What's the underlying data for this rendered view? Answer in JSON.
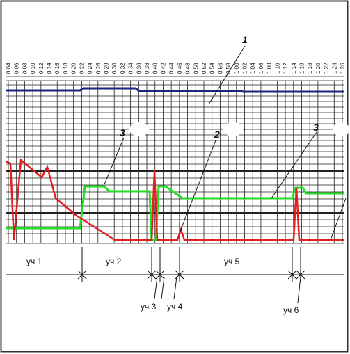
{
  "time_labels": [
    "0:04",
    "0:06",
    "0:08",
    "0:10",
    "0:12",
    "0:14",
    "0:16",
    "0:18",
    "0:20",
    "0:22",
    "0:24",
    "0:26",
    "0:28",
    "0:30",
    "0:32",
    "0:34",
    "0:36",
    "0:38",
    "0:40",
    "0:42",
    "0:44",
    "0:46",
    "0:48",
    "0:50",
    "0:52",
    "0:54",
    "0:56",
    "0:58",
    "1:00",
    "1:02",
    "1:04",
    "1:06",
    "1:08",
    "1:10",
    "1:12",
    "1:14",
    "1:16",
    "1:18",
    "1:20",
    "1:22",
    "1:24",
    "1:26"
  ],
  "callouts": [
    "1",
    "2",
    "3",
    "3"
  ],
  "segments": [
    "уч 1",
    "уч 2",
    "уч 5",
    "уч 3",
    "уч 4",
    "уч 6"
  ]
}
